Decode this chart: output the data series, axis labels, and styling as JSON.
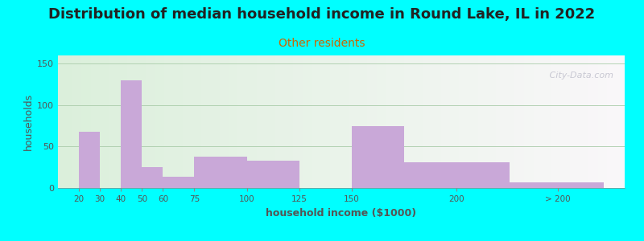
{
  "title": "Distribution of median household income in Round Lake, IL in 2022",
  "subtitle": "Other residents",
  "xlabel": "household income ($1000)",
  "ylabel": "households",
  "tick_labels": [
    "20",
    "30",
    "40",
    "50",
    "60",
    "75",
    "100",
    "125",
    "150",
    "200",
    "> 200"
  ],
  "bar_lefts": [
    20,
    40,
    50,
    60,
    75,
    100,
    150,
    175,
    225
  ],
  "bar_rights": [
    30,
    50,
    60,
    75,
    100,
    125,
    175,
    225,
    270
  ],
  "bar_values": [
    68,
    130,
    25,
    14,
    38,
    33,
    75,
    31,
    7
  ],
  "bar_color": "#c9a8d8",
  "background_color": "#00ffff",
  "ylim": [
    0,
    160
  ],
  "yticks": [
    0,
    50,
    100,
    150
  ],
  "title_fontsize": 13,
  "subtitle_fontsize": 10,
  "subtitle_color": "#cc6600",
  "axis_label_fontsize": 9,
  "watermark": " City-Data.com"
}
